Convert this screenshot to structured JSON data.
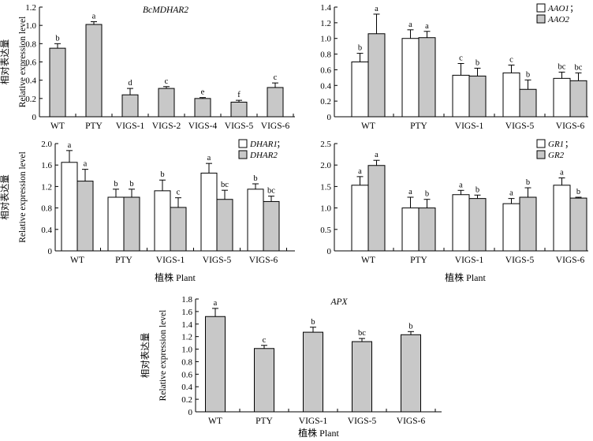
{
  "colors": {
    "fill_primary": "#c8c8c8",
    "fill_secondary": "#ffffff",
    "stroke": "#000000"
  },
  "labels": {
    "ylabel_cn": "相对表达量",
    "ylabel_en": "Relative expression level",
    "xlabel": "植株 Plant"
  },
  "chart_data": [
    {
      "type": "bar",
      "title": "BcMDHAR2",
      "categories": [
        "WT",
        "PTY",
        "VIGS-1",
        "VIGS-2",
        "VIGS-4",
        "VIGS-5",
        "VIGS-6"
      ],
      "ylim": [
        0,
        1.2
      ],
      "yticks": [
        "0",
        "0.2",
        "0.4",
        "0.6",
        "0.8",
        "1.0",
        "1.2"
      ],
      "ylabel_cn": "相对表达量",
      "ylabel_en": "Relative expression level",
      "xlabel": "",
      "legend": [],
      "series": [
        {
          "name": "BcMDHAR2",
          "fill": "#c8c8c8",
          "values": [
            0.75,
            1.01,
            0.24,
            0.31,
            0.2,
            0.16,
            0.32
          ],
          "errors": [
            0.05,
            0.03,
            0.07,
            0.02,
            0.01,
            0.02,
            0.05
          ],
          "letters": [
            "b",
            "a",
            "d",
            "c",
            "e",
            "f",
            "c"
          ]
        }
      ]
    },
    {
      "type": "bar",
      "title": "",
      "categories": [
        "WT",
        "PTY",
        "VIGS-1",
        "VIGS-5",
        "VIGS-6"
      ],
      "ylim": [
        0,
        1.4
      ],
      "yticks": [
        "0",
        "0.2",
        "0.4",
        "0.6",
        "0.8",
        "1.0",
        "1.2",
        "1.4"
      ],
      "ylabel_cn": "",
      "ylabel_en": "",
      "xlabel": "",
      "legend": [
        {
          "label": "AAO1",
          "sep": "；"
        },
        {
          "label": "AAO2",
          "sep": ""
        }
      ],
      "series": [
        {
          "name": "AAO1",
          "fill": "#ffffff",
          "values": [
            0.7,
            1.0,
            0.53,
            0.56,
            0.49
          ],
          "errors": [
            0.11,
            0.11,
            0.15,
            0.1,
            0.08
          ],
          "letters": [
            "b",
            "a",
            "c",
            "c",
            "bc"
          ]
        },
        {
          "name": "AAO2",
          "fill": "#c8c8c8",
          "values": [
            1.06,
            1.01,
            0.52,
            0.35,
            0.46
          ],
          "errors": [
            0.25,
            0.08,
            0.1,
            0.12,
            0.1
          ],
          "letters": [
            "a",
            "a",
            "b",
            "b",
            "bc"
          ]
        }
      ]
    },
    {
      "type": "bar",
      "title": "",
      "categories": [
        "WT",
        "PTY",
        "VIGS-1",
        "VIGS-5",
        "VIGS-6"
      ],
      "ylim": [
        0,
        2.0
      ],
      "yticks": [
        "0",
        "0.4",
        "0.8",
        "1.2",
        "1.6",
        "2.0"
      ],
      "ylabel_cn": "相对表达量",
      "ylabel_en": "Relative expression level",
      "xlabel": "植株 Plant",
      "legend": [
        {
          "label": "DHAR1",
          "sep": "；"
        },
        {
          "label": "DHAR2",
          "sep": ""
        }
      ],
      "series": [
        {
          "name": "DHAR1",
          "fill": "#ffffff",
          "values": [
            1.65,
            1.0,
            1.12,
            1.45,
            1.15
          ],
          "errors": [
            0.22,
            0.15,
            0.2,
            0.18,
            0.1
          ],
          "letters": [
            "a",
            "b",
            "b",
            "a",
            "b"
          ]
        },
        {
          "name": "DHAR2",
          "fill": "#c8c8c8",
          "values": [
            1.3,
            1.0,
            0.81,
            0.96,
            0.92
          ],
          "errors": [
            0.22,
            0.15,
            0.18,
            0.17,
            0.1
          ],
          "letters": [
            "a",
            "b",
            "c",
            "bc",
            "bc"
          ]
        }
      ]
    },
    {
      "type": "bar",
      "title": "",
      "categories": [
        "WT",
        "PTY",
        "VIGS-1",
        "VIGS-5",
        "VIGS-6"
      ],
      "ylim": [
        0,
        2.5
      ],
      "yticks": [
        "0",
        "0.5",
        "1.0",
        "1.5",
        "2.0",
        "2.5"
      ],
      "ylabel_cn": "",
      "ylabel_en": "",
      "xlabel": "植株 Plant",
      "legend": [
        {
          "label": "GR1",
          "sep": "；"
        },
        {
          "label": "GR2",
          "sep": ""
        }
      ],
      "series": [
        {
          "name": "GR1",
          "fill": "#ffffff",
          "values": [
            1.53,
            1.0,
            1.31,
            1.1,
            1.53
          ],
          "errors": [
            0.2,
            0.25,
            0.1,
            0.12,
            0.17
          ],
          "letters": [
            "a",
            "a",
            "a",
            "a",
            "a"
          ]
        },
        {
          "name": "GR2",
          "fill": "#c8c8c8",
          "values": [
            1.99,
            1.0,
            1.22,
            1.25,
            1.23
          ],
          "errors": [
            0.12,
            0.2,
            0.08,
            0.22,
            0.02
          ],
          "letters": [
            "a",
            "b",
            "b",
            "b",
            "b"
          ]
        }
      ]
    },
    {
      "type": "bar",
      "title": "APX",
      "categories": [
        "WT",
        "PTY",
        "VIGS-1",
        "VIGS-5",
        "VIGS-6"
      ],
      "ylim": [
        0,
        1.8
      ],
      "yticks": [
        "0",
        "0.2",
        "0.4",
        "0.6",
        "0.8",
        "1.0",
        "1.2",
        "1.4",
        "1.6",
        "1.8"
      ],
      "ylabel_cn": "相对表达量",
      "ylabel_en": "Relative expression level",
      "xlabel": "植株 Plant",
      "legend": [],
      "series": [
        {
          "name": "APX",
          "fill": "#c8c8c8",
          "values": [
            1.52,
            1.01,
            1.27,
            1.12,
            1.23
          ],
          "errors": [
            0.13,
            0.05,
            0.08,
            0.05,
            0.05
          ],
          "letters": [
            "a",
            "c",
            "b",
            "bc",
            "b"
          ]
        }
      ]
    }
  ]
}
